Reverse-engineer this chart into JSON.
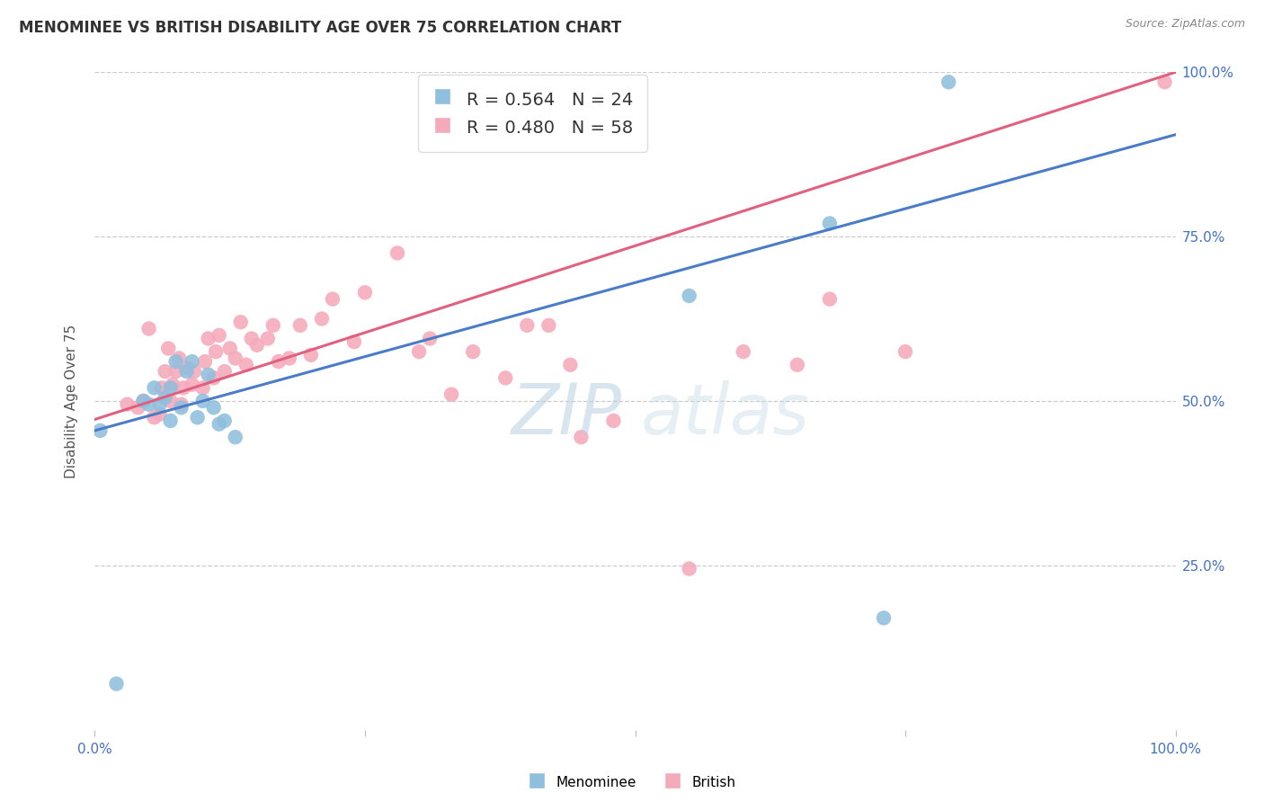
{
  "title": "MENOMINEE VS BRITISH DISABILITY AGE OVER 75 CORRELATION CHART",
  "source": "Source: ZipAtlas.com",
  "ylabel": "Disability Age Over 75",
  "xlim": [
    0.0,
    1.0
  ],
  "ylim": [
    0.0,
    1.0
  ],
  "menominee_R": 0.564,
  "menominee_N": 24,
  "british_R": 0.48,
  "british_N": 58,
  "menominee_color": "#90bedd",
  "british_color": "#f5aabb",
  "menominee_line_color": "#4a7cc7",
  "british_line_color": "#e06080",
  "background_color": "#ffffff",
  "grid_color": "#cccccc",
  "watermark_color": "#d0e4f0",
  "menominee_line_x0": 0.0,
  "menominee_line_y0": 0.455,
  "menominee_line_x1": 1.0,
  "menominee_line_y1": 0.905,
  "british_line_x0": 0.0,
  "british_line_y0": 0.472,
  "british_line_x1": 1.0,
  "british_line_y1": 1.0,
  "menominee_x": [
    0.005,
    0.02,
    0.045,
    0.05,
    0.055,
    0.06,
    0.065,
    0.07,
    0.07,
    0.075,
    0.08,
    0.085,
    0.09,
    0.095,
    0.1,
    0.105,
    0.11,
    0.115,
    0.12,
    0.13,
    0.55,
    0.68,
    0.73,
    0.79
  ],
  "menominee_y": [
    0.455,
    0.07,
    0.5,
    0.495,
    0.52,
    0.495,
    0.505,
    0.47,
    0.52,
    0.56,
    0.49,
    0.545,
    0.56,
    0.475,
    0.5,
    0.54,
    0.49,
    0.465,
    0.47,
    0.445,
    0.66,
    0.77,
    0.17,
    0.985
  ],
  "british_x": [
    0.03,
    0.04,
    0.045,
    0.05,
    0.055,
    0.06,
    0.062,
    0.065,
    0.068,
    0.07,
    0.072,
    0.075,
    0.078,
    0.08,
    0.082,
    0.085,
    0.09,
    0.092,
    0.1,
    0.102,
    0.105,
    0.11,
    0.112,
    0.115,
    0.12,
    0.125,
    0.13,
    0.135,
    0.14,
    0.145,
    0.15,
    0.16,
    0.165,
    0.17,
    0.18,
    0.19,
    0.2,
    0.21,
    0.22,
    0.24,
    0.25,
    0.28,
    0.3,
    0.31,
    0.33,
    0.35,
    0.38,
    0.4,
    0.42,
    0.44,
    0.45,
    0.48,
    0.55,
    0.6,
    0.65,
    0.68,
    0.75,
    0.99
  ],
  "british_y": [
    0.495,
    0.49,
    0.5,
    0.61,
    0.475,
    0.48,
    0.52,
    0.545,
    0.58,
    0.5,
    0.525,
    0.545,
    0.565,
    0.495,
    0.52,
    0.55,
    0.525,
    0.545,
    0.52,
    0.56,
    0.595,
    0.535,
    0.575,
    0.6,
    0.545,
    0.58,
    0.565,
    0.62,
    0.555,
    0.595,
    0.585,
    0.595,
    0.615,
    0.56,
    0.565,
    0.615,
    0.57,
    0.625,
    0.655,
    0.59,
    0.665,
    0.725,
    0.575,
    0.595,
    0.51,
    0.575,
    0.535,
    0.615,
    0.615,
    0.555,
    0.445,
    0.47,
    0.245,
    0.575,
    0.555,
    0.655,
    0.575,
    0.985
  ]
}
